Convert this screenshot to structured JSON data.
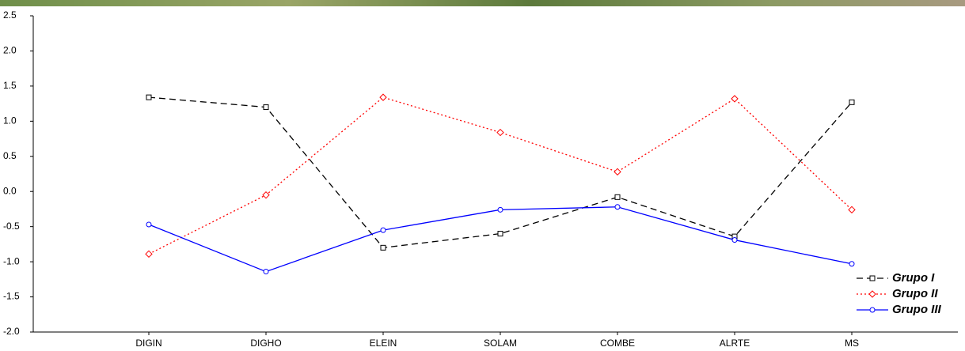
{
  "chart_data": {
    "type": "line",
    "categories": [
      "DIGIN",
      "DIGHO",
      "ELEIN",
      "SOLAM",
      "COMBE",
      "ALRTE",
      "MS"
    ],
    "series": [
      {
        "name": "Grupo I",
        "color": "#000000",
        "values": [
          1.34,
          1.2,
          -0.8,
          -0.6,
          -0.08,
          -0.64,
          1.27
        ]
      },
      {
        "name": "Grupo II",
        "color": "#ff0000",
        "values": [
          -0.89,
          -0.05,
          1.34,
          0.84,
          0.28,
          1.32,
          -0.26
        ]
      },
      {
        "name": "Grupo III",
        "color": "#0000ff",
        "values": [
          -0.47,
          -1.14,
          -0.55,
          -0.26,
          -0.22,
          -0.69,
          -1.03
        ]
      }
    ],
    "ylim": [
      -2,
      2.5
    ],
    "yticks": [
      {
        "value": -2,
        "label": "-2.0"
      },
      -1.5,
      {
        "value": -1,
        "label": "-1.0"
      },
      -0.5,
      {
        "value": 0,
        "label": "0.0"
      },
      0.5,
      {
        "value": 1,
        "label": "1.0"
      },
      1.5,
      {
        "value": 2,
        "label": "2.0"
      },
      2.5
    ],
    "grid": false,
    "legend": "lower right"
  }
}
